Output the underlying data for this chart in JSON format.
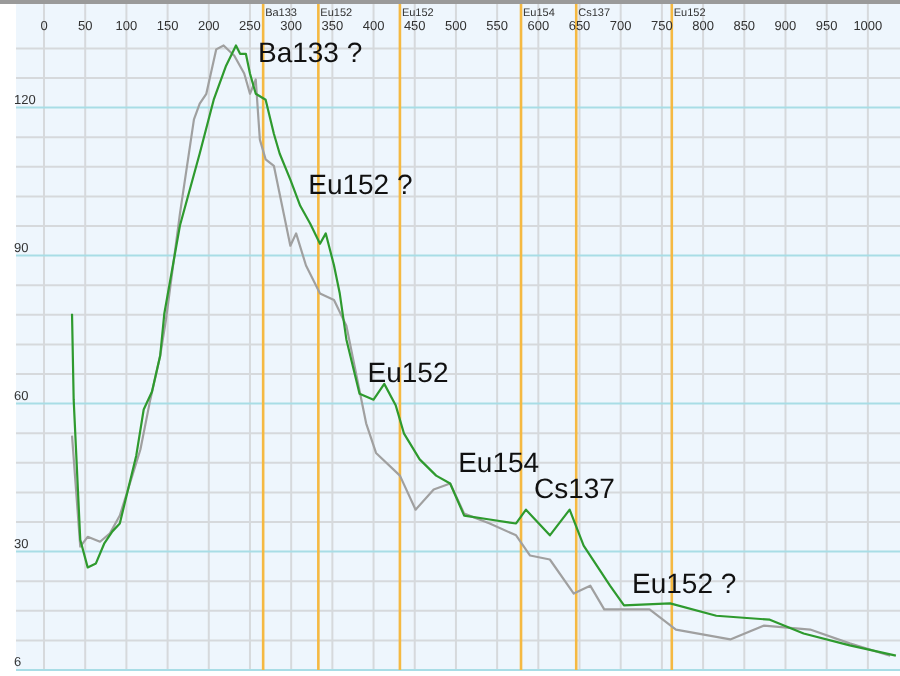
{
  "chart_data": {
    "type": "line",
    "xlim": [
      -34,
      1039
    ],
    "ylim": [
      6,
      141
    ],
    "xticks": [
      0,
      50,
      100,
      150,
      200,
      250,
      300,
      350,
      400,
      450,
      500,
      550,
      600,
      650,
      700,
      750,
      800,
      850,
      900,
      950,
      1000
    ],
    "yticks": [
      6,
      {
        "value": 12,
        "label": null
      },
      {
        "value": 18,
        "label": null
      },
      {
        "value": 24,
        "label": null
      },
      30,
      {
        "value": 36,
        "label": null
      },
      {
        "value": 42,
        "label": null
      },
      {
        "value": 48,
        "label": null
      },
      {
        "value": 54,
        "label": null
      },
      60,
      {
        "value": 66,
        "label": null
      },
      {
        "value": 72,
        "label": null
      },
      {
        "value": 78,
        "label": null
      },
      {
        "value": 84,
        "label": null
      },
      90,
      {
        "value": 96,
        "label": null
      },
      {
        "value": 102,
        "label": null
      },
      {
        "value": 108,
        "label": null
      },
      {
        "value": 114,
        "label": null
      },
      120,
      {
        "value": 126,
        "label": null
      },
      {
        "value": 132,
        "label": null
      }
    ],
    "grid": true,
    "series": [
      {
        "color": "#a0a0a0",
        "x": [
          34,
          44,
          53,
          68,
          80,
          92,
          102,
          117,
          129,
          141,
          148,
          165,
          182,
          189,
          197,
          209,
          218,
          231,
          243,
          250,
          257,
          262,
          269,
          279,
          291,
          299,
          306,
          318,
          335,
          352,
          367,
          391,
          403,
          432,
          451,
          473,
          493,
          510,
          541,
          573,
          590,
          614,
          643,
          663,
          680,
          735,
          767,
          833,
          874,
          930,
          978,
          1027
        ],
        "values": [
          53.5,
          31,
          33,
          32,
          33.7,
          37.3,
          42.6,
          50.7,
          60.8,
          69.7,
          77,
          98.5,
          117.6,
          120.8,
          122.8,
          131.8,
          132.6,
          130.5,
          126.9,
          122.8,
          125.7,
          113.5,
          109.5,
          108.2,
          98.5,
          92,
          94.5,
          88,
          82.3,
          81,
          75.8,
          56,
          50,
          45.4,
          38.5,
          42.6,
          43.8,
          37.7,
          35.7,
          33.3,
          29.2,
          28.4,
          21.5,
          23.1,
          18.3,
          18.3,
          14.2,
          12.2,
          15,
          14.2,
          11.4,
          8.9
        ]
      },
      {
        "color": "#2e9a2e",
        "x": [
          34,
          36,
          44,
          53,
          63,
          73,
          83,
          92,
          102,
          112,
          121,
          131,
          141,
          146,
          165,
          189,
          206,
          221,
          233,
          238,
          245,
          250,
          257,
          269,
          279,
          286,
          299,
          311,
          323,
          335,
          342,
          352,
          359,
          367,
          383,
          400,
          413,
          427,
          437,
          456,
          476,
          493,
          510,
          541,
          573,
          585,
          614,
          638,
          655,
          687,
          704,
          760,
          816,
          881,
          922,
          978,
          1034
        ],
        "values": [
          78.2,
          60.8,
          32.4,
          26.8,
          27.6,
          31.6,
          34.1,
          35.7,
          42.6,
          49.5,
          58.8,
          62.4,
          69.7,
          78.2,
          96.1,
          110.7,
          121.6,
          128.5,
          132.6,
          130.9,
          130.9,
          126.9,
          122.8,
          121.6,
          114.7,
          110.7,
          105.4,
          100.1,
          96.5,
          92.4,
          94.5,
          88,
          82.3,
          73,
          62,
          60.8,
          64,
          59.6,
          53.9,
          48.7,
          45.4,
          43.8,
          37.3,
          36.5,
          35.7,
          38.5,
          33.3,
          38.5,
          31.2,
          23.1,
          19.1,
          19.5,
          17,
          16.2,
          13.4,
          11,
          8.9
        ]
      }
    ],
    "ref_lines": [
      {
        "axis": "x",
        "value": 266,
        "label": "Ba133",
        "color": "#f5b942"
      },
      {
        "axis": "x",
        "value": 333,
        "label": "Eu152",
        "color": "#f5b942"
      },
      {
        "axis": "x",
        "value": 432,
        "label": "Eu152",
        "color": "#f5b942"
      },
      {
        "axis": "x",
        "value": 579,
        "label": "Eu154",
        "color": "#f5b942"
      },
      {
        "axis": "x",
        "value": 646,
        "label": "Cs137",
        "color": "#f5b942"
      },
      {
        "axis": "x",
        "value": 762,
        "label": "Eu152",
        "color": "#f5b942"
      }
    ],
    "annotations": [
      {
        "text": "Ba133 ?",
        "x": 250,
        "y": 126.9
      },
      {
        "text": "Eu152 ?",
        "x": 311,
        "y": 100.1
      },
      {
        "text": "Eu152",
        "x": 383,
        "y": 62
      },
      {
        "text": "Eu154",
        "x": 493,
        "y": 43.8
      },
      {
        "text": "Cs137",
        "x": 585,
        "y": 38.5
      },
      {
        "text": "Eu152 ?",
        "x": 704,
        "y": 19.1
      }
    ]
  }
}
